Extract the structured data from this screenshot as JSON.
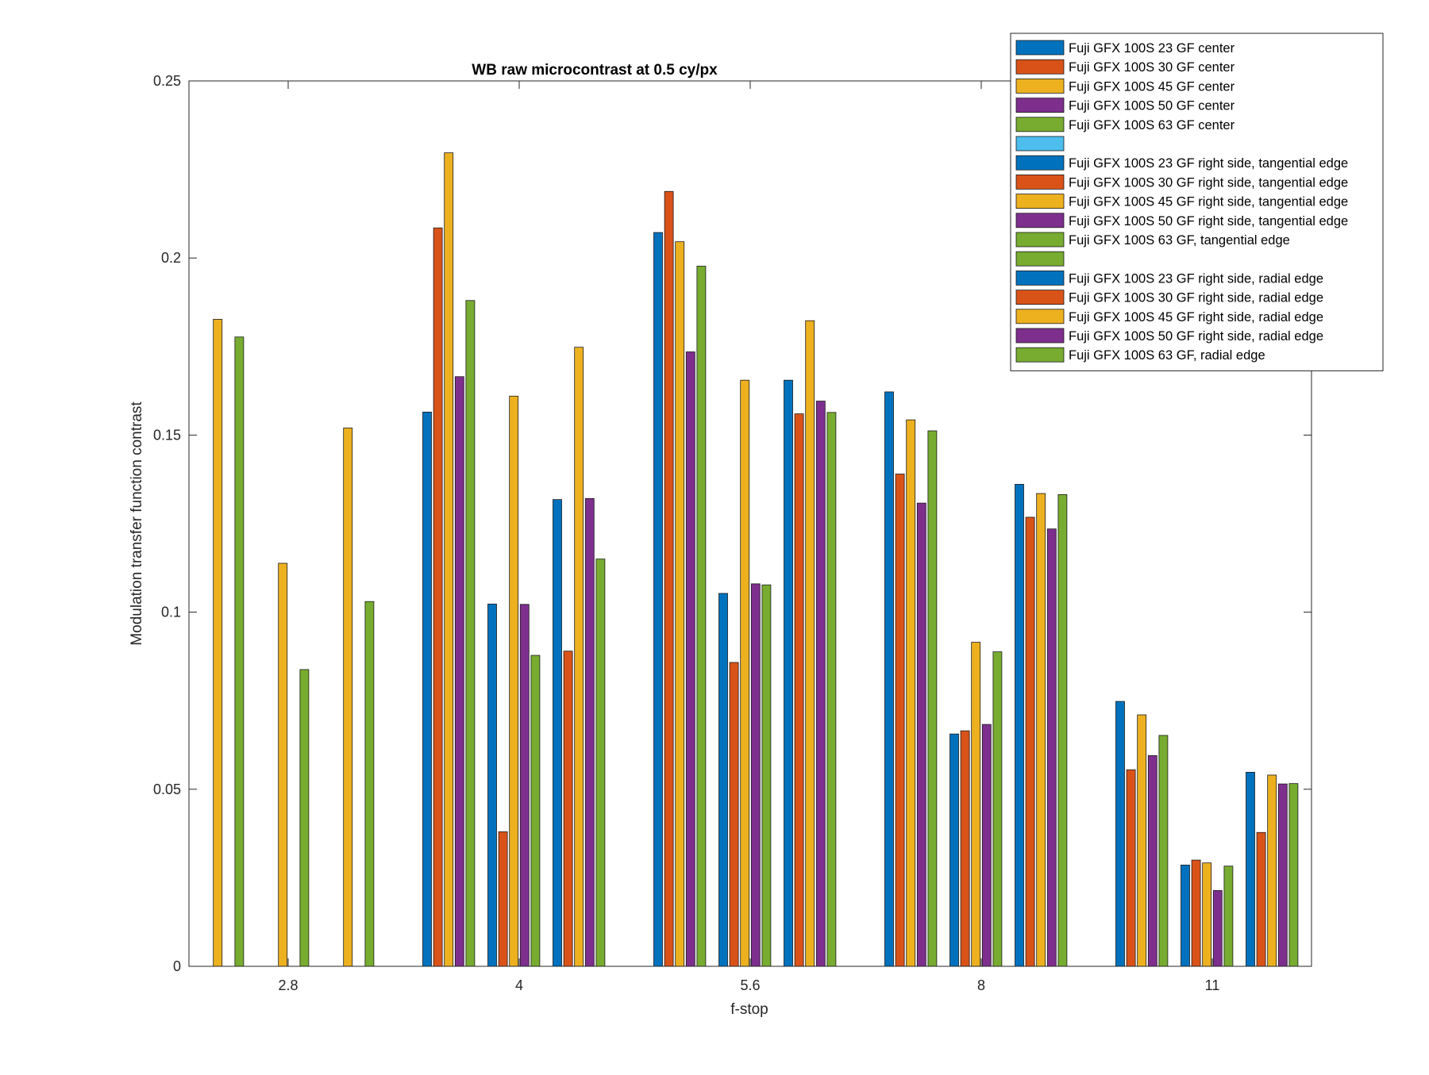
{
  "chart_data": {
    "type": "bar",
    "title": "WB raw  microcontrast at 0.5 cy/px",
    "xlabel": "f-stop",
    "ylabel": "Modulation transfer function contrast",
    "ylim": [
      0,
      0.25
    ],
    "yticks": [
      0,
      0.05,
      0.1,
      0.15,
      0.2,
      0.25
    ],
    "ytick_labels": [
      "0",
      "0.05",
      "0.1",
      "0.15",
      "0.2",
      "0.25"
    ],
    "categories": [
      "2.8",
      "4",
      "5.6",
      "8",
      "11"
    ],
    "groups": [
      "center",
      "tangential edge",
      "radial edge"
    ],
    "legend_position": "top-right",
    "grid": false,
    "series": [
      {
        "name": "Fuji GFX 100S 23 GF center",
        "color": "#0072BD",
        "values": [
          null,
          0.1565,
          0.2072,
          0.1622,
          0.0748
        ]
      },
      {
        "name": "Fuji GFX 100S 30 GF center",
        "color": "#D95319",
        "values": [
          null,
          0.2085,
          0.2188,
          0.139,
          0.0555
        ]
      },
      {
        "name": "Fuji GFX 100S 45 GF center",
        "color": "#EDB120",
        "values": [
          0.1827,
          0.2297,
          0.2046,
          0.1543,
          0.071
        ]
      },
      {
        "name": "Fuji GFX 100S 50 GF center",
        "color": "#7E2F8E",
        "values": [
          null,
          0.1665,
          0.1735,
          0.1308,
          0.0595
        ]
      },
      {
        "name": "Fuji GFX 100S 63 GF center",
        "color": "#77AC30",
        "values": [
          0.1777,
          0.188,
          0.1977,
          0.1512,
          0.0652
        ]
      },
      {
        "name": "",
        "color": "#4DBEEE",
        "values": [
          null,
          null,
          null,
          null,
          null
        ]
      },
      {
        "name": "Fuji GFX 100S 23 GF right side, tangential edge",
        "color": "#0072BD",
        "values": [
          null,
          0.1023,
          0.1053,
          0.0656,
          0.0286
        ]
      },
      {
        "name": "Fuji GFX 100S 30 GF right side, tangential edge",
        "color": "#D95319",
        "values": [
          null,
          0.038,
          0.0858,
          0.0665,
          0.03
        ]
      },
      {
        "name": "Fuji GFX 100S 45 GF right side, tangential edge",
        "color": "#EDB120",
        "values": [
          0.1138,
          0.161,
          0.1655,
          0.0915,
          0.0292
        ]
      },
      {
        "name": "Fuji GFX 100S 50 GF right side, tangential edge",
        "color": "#7E2F8E",
        "values": [
          null,
          0.1022,
          0.108,
          0.0683,
          0.0214
        ]
      },
      {
        "name": "Fuji GFX 100S 63 GF, tangential edge",
        "color": "#77AC30",
        "values": [
          0.0838,
          0.0878,
          0.1077,
          0.0888,
          0.0283
        ]
      },
      {
        "name": "",
        "color": "#77AC30",
        "values": [
          null,
          null,
          null,
          null,
          null
        ]
      },
      {
        "name": "Fuji GFX 100S 23 GF right side, radial edge",
        "color": "#0072BD",
        "values": [
          null,
          0.1318,
          0.1655,
          0.1361,
          0.0548
        ]
      },
      {
        "name": "Fuji GFX 100S 30 GF right side, radial edge",
        "color": "#D95319",
        "values": [
          null,
          0.089,
          0.156,
          0.1268,
          0.0378
        ]
      },
      {
        "name": "Fuji GFX 100S 45 GF right side, radial edge",
        "color": "#EDB120",
        "values": [
          0.152,
          0.1748,
          0.1823,
          0.1335,
          0.054
        ]
      },
      {
        "name": "Fuji GFX 100S 50 GF right side, radial edge",
        "color": "#7E2F8E",
        "values": [
          null,
          0.1321,
          0.1596,
          0.1235,
          0.0515
        ]
      },
      {
        "name": "Fuji GFX 100S 63 GF, radial edge",
        "color": "#77AC30",
        "values": [
          0.103,
          0.115,
          0.1564,
          0.1332,
          0.0516
        ]
      }
    ]
  }
}
